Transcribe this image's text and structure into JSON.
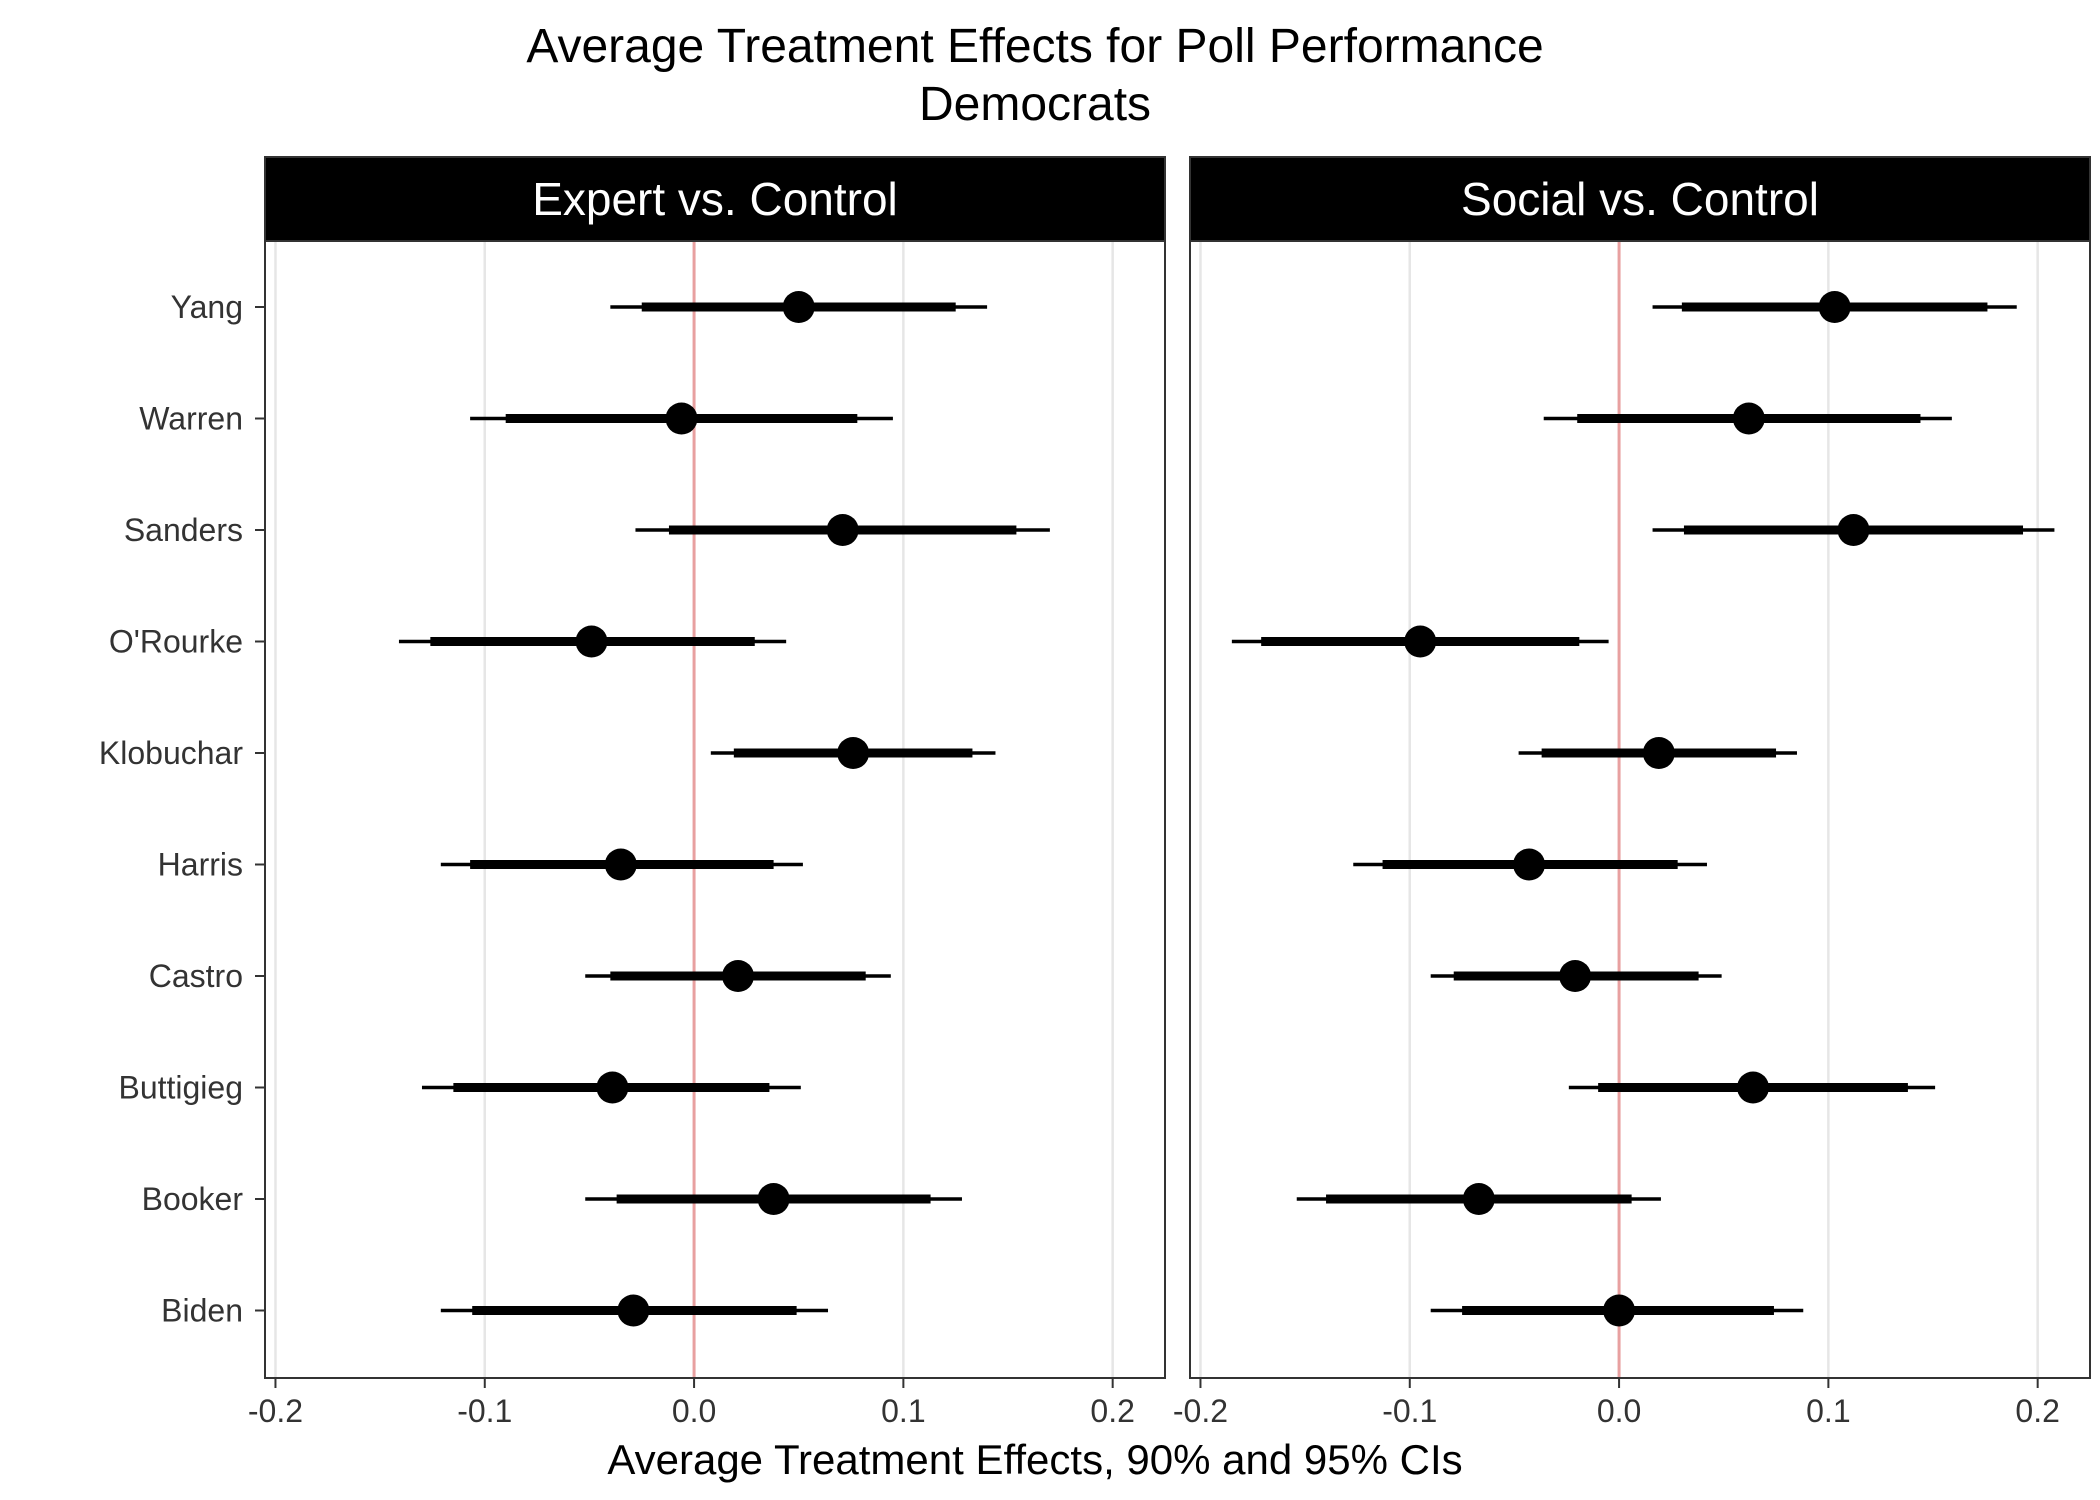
{
  "chart_data": {
    "type": "forest",
    "title": "Average Treatment Effects for Poll Performance",
    "subtitle": "Democrats",
    "xlabel": "Average Treatment Effects, 90% and 95% CIs",
    "ylabel": "",
    "xlim": [
      -0.205,
      0.225
    ],
    "x_ticks": [
      "-0.2",
      "-0.1",
      "0.0",
      "0.1",
      "0.2"
    ],
    "x_tick_values": [
      -0.2,
      -0.1,
      0.0,
      0.1,
      0.2
    ],
    "reference_line": 0.0,
    "grid": true,
    "categories": [
      "Yang",
      "Warren",
      "Sanders",
      "O'Rourke",
      "Klobuchar",
      "Harris",
      "Castro",
      "Buttigieg",
      "Booker",
      "Biden"
    ],
    "panels": [
      {
        "name": "Expert vs. Control",
        "estimates": [
          0.05,
          -0.006,
          0.071,
          -0.049,
          0.076,
          -0.035,
          0.021,
          -0.039,
          0.038,
          -0.029
        ],
        "ci90_low": [
          -0.025,
          -0.09,
          -0.012,
          -0.126,
          0.019,
          -0.107,
          -0.04,
          -0.115,
          -0.037,
          -0.106
        ],
        "ci90_high": [
          0.125,
          0.078,
          0.154,
          0.029,
          0.133,
          0.038,
          0.082,
          0.036,
          0.113,
          0.049
        ],
        "ci95_low": [
          -0.04,
          -0.107,
          -0.028,
          -0.141,
          0.008,
          -0.121,
          -0.052,
          -0.13,
          -0.052,
          -0.121
        ],
        "ci95_high": [
          0.14,
          0.095,
          0.17,
          0.044,
          0.144,
          0.052,
          0.094,
          0.051,
          0.128,
          0.064
        ]
      },
      {
        "name": "Social vs. Control",
        "estimates": [
          0.103,
          0.062,
          0.112,
          -0.095,
          0.019,
          -0.043,
          -0.021,
          0.064,
          -0.067,
          0.0
        ],
        "ci90_low": [
          0.03,
          -0.02,
          0.031,
          -0.171,
          -0.037,
          -0.113,
          -0.079,
          -0.01,
          -0.14,
          -0.075
        ],
        "ci90_high": [
          0.176,
          0.144,
          0.193,
          -0.019,
          0.075,
          0.028,
          0.038,
          0.138,
          0.006,
          0.074
        ],
        "ci95_low": [
          0.016,
          -0.036,
          0.016,
          -0.185,
          -0.048,
          -0.127,
          -0.09,
          -0.024,
          -0.154,
          -0.09
        ],
        "ci95_high": [
          0.19,
          0.159,
          0.208,
          -0.005,
          0.085,
          0.042,
          0.049,
          0.151,
          0.02,
          0.088
        ]
      }
    ],
    "colors": {
      "strip_bg": "#000000",
      "strip_text": "#ffffff",
      "grid": "#e6e6e6",
      "reference": "#e8a0a0",
      "marks": "#000000",
      "axis": "#333333"
    }
  }
}
